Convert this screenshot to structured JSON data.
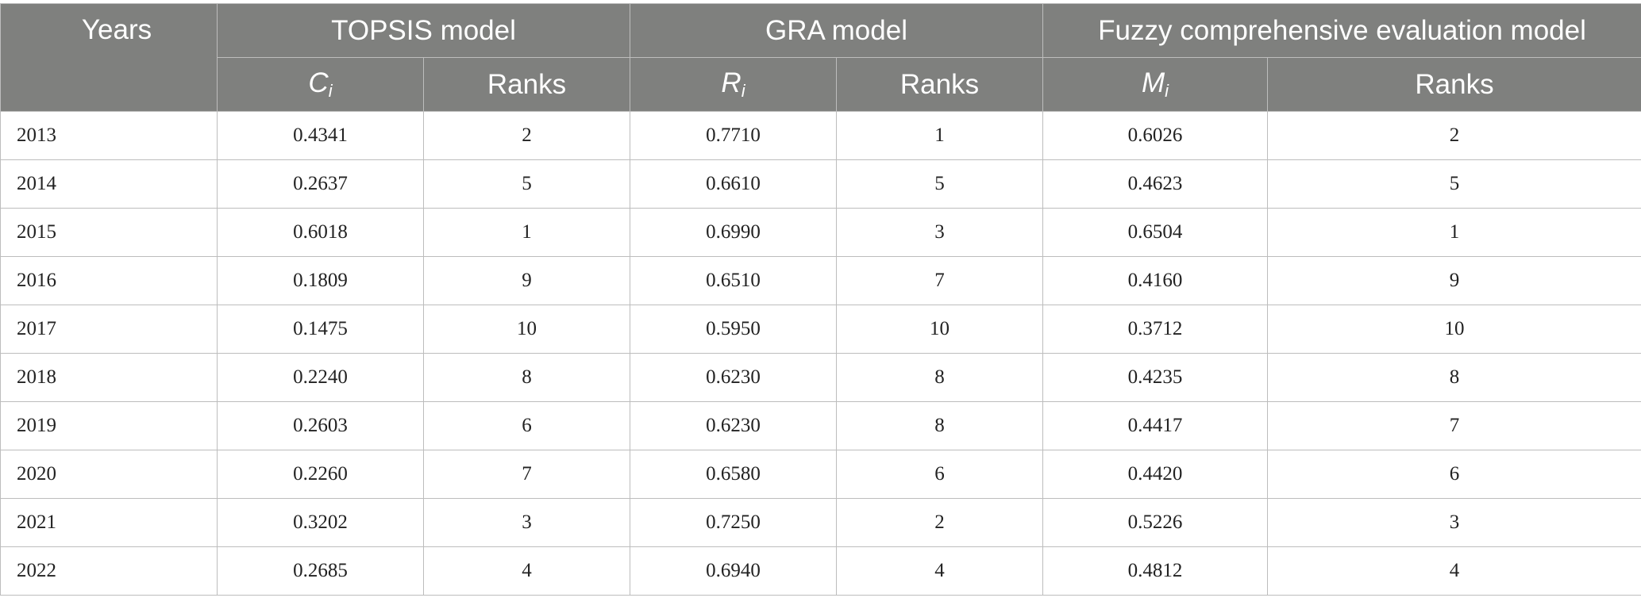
{
  "header": {
    "years_label": "Years",
    "groups": [
      {
        "label": "TOPSIS model",
        "sub": [
          {
            "symbol": "C",
            "index": "i"
          },
          {
            "label": "Ranks"
          }
        ]
      },
      {
        "label": "GRA model",
        "sub": [
          {
            "symbol": "R",
            "index": "i"
          },
          {
            "label": "Ranks"
          }
        ]
      },
      {
        "label": "Fuzzy comprehensive evaluation model",
        "sub": [
          {
            "symbol": "M",
            "index": "i"
          },
          {
            "label": "Ranks"
          }
        ]
      }
    ]
  },
  "rows": [
    {
      "year": "2013",
      "topsis_c": "0.4341",
      "topsis_rank": "2",
      "gra_r": "0.7710",
      "gra_rank": "1",
      "fuzzy_m": "0.6026",
      "fuzzy_rank": "2"
    },
    {
      "year": "2014",
      "topsis_c": "0.2637",
      "topsis_rank": "5",
      "gra_r": "0.6610",
      "gra_rank": "5",
      "fuzzy_m": "0.4623",
      "fuzzy_rank": "5"
    },
    {
      "year": "2015",
      "topsis_c": "0.6018",
      "topsis_rank": "1",
      "gra_r": "0.6990",
      "gra_rank": "3",
      "fuzzy_m": "0.6504",
      "fuzzy_rank": "1"
    },
    {
      "year": "2016",
      "topsis_c": "0.1809",
      "topsis_rank": "9",
      "gra_r": "0.6510",
      "gra_rank": "7",
      "fuzzy_m": "0.4160",
      "fuzzy_rank": "9"
    },
    {
      "year": "2017",
      "topsis_c": "0.1475",
      "topsis_rank": "10",
      "gra_r": "0.5950",
      "gra_rank": "10",
      "fuzzy_m": "0.3712",
      "fuzzy_rank": "10"
    },
    {
      "year": "2018",
      "topsis_c": "0.2240",
      "topsis_rank": "8",
      "gra_r": "0.6230",
      "gra_rank": "8",
      "fuzzy_m": "0.4235",
      "fuzzy_rank": "8"
    },
    {
      "year": "2019",
      "topsis_c": "0.2603",
      "topsis_rank": "6",
      "gra_r": "0.6230",
      "gra_rank": "8",
      "fuzzy_m": "0.4417",
      "fuzzy_rank": "7"
    },
    {
      "year": "2020",
      "topsis_c": "0.2260",
      "topsis_rank": "7",
      "gra_r": "0.6580",
      "gra_rank": "6",
      "fuzzy_m": "0.4420",
      "fuzzy_rank": "6"
    },
    {
      "year": "2021",
      "topsis_c": "0.3202",
      "topsis_rank": "3",
      "gra_r": "0.7250",
      "gra_rank": "2",
      "fuzzy_m": "0.5226",
      "fuzzy_rank": "3"
    },
    {
      "year": "2022",
      "topsis_c": "0.2685",
      "topsis_rank": "4",
      "gra_r": "0.6940",
      "gra_rank": "4",
      "fuzzy_m": "0.4812",
      "fuzzy_rank": "4"
    }
  ],
  "style": {
    "header_bg": "#7f807e",
    "header_text": "#ffffff",
    "grid_line": "#bdbdbd"
  }
}
